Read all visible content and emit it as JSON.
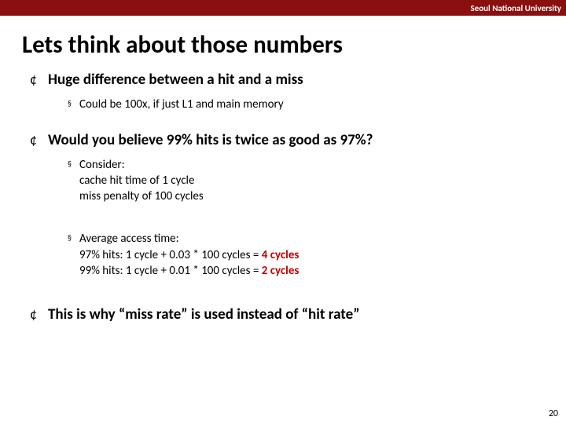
{
  "colors": {
    "header_bg": "#8a0f0f",
    "highlight": "#c00000"
  },
  "header": {
    "org": "Seoul National University"
  },
  "title": "Lets think about those numbers",
  "bullets": {
    "b1": {
      "text": "Huge difference between a hit and a miss",
      "sub1": "Could be 100x, if just L1 and main memory"
    },
    "b2": {
      "text": "Would you believe 99% hits is twice as good as 97%?",
      "sub1_lead": "Consider:",
      "sub1_l1": "cache hit time of 1 cycle",
      "sub1_l2": "miss penalty of 100 cycles",
      "sub2_lead": "Average access time:",
      "sub2_l1a": "97% hits:  1 cycle + 0.03 * 100 cycles = ",
      "sub2_l1b": "4 cycles",
      "sub2_l2a": "99% hits:  1 cycle + 0.01 * 100 cycles = ",
      "sub2_l2b": "2 cycles"
    },
    "b3": {
      "text": "This is why “miss rate” is used instead of “hit rate”"
    }
  },
  "page_number": "20"
}
